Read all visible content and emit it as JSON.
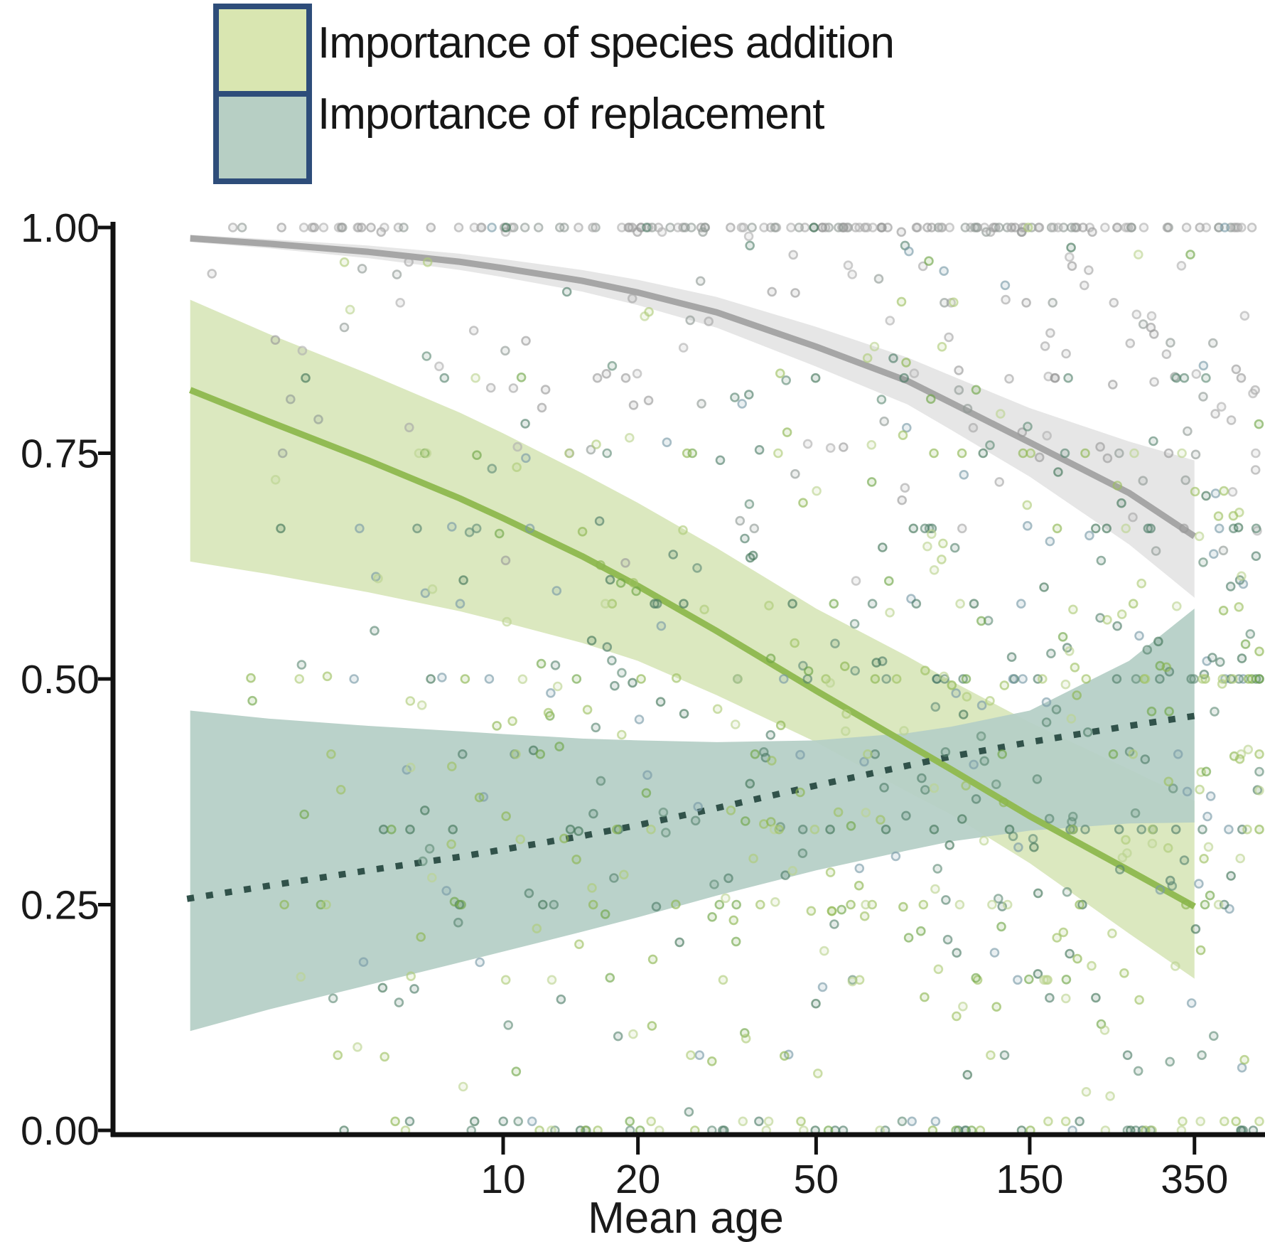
{
  "legend": {
    "border_color": "#2e4d7a",
    "items": [
      {
        "label": "Importance of species addition",
        "color": "#d9e6b1"
      },
      {
        "label": "Importance of replacement",
        "color": "#b7cfc4"
      }
    ]
  },
  "axes": {
    "x_label": "Mean age",
    "y_ticks": [
      {
        "label": "1.00",
        "value": 1
      },
      {
        "label": "0.75",
        "value": 0.75
      },
      {
        "label": "0.50",
        "value": 0.5
      },
      {
        "label": "0.25",
        "value": 0.25
      },
      {
        "label": "0.00",
        "value": 0
      }
    ],
    "x_ticks": [
      {
        "label": "10",
        "value": 10
      },
      {
        "label": "20",
        "value": 20
      },
      {
        "label": "50",
        "value": 50
      },
      {
        "label": "150",
        "value": 150
      },
      {
        "label": "350",
        "value": 350
      }
    ]
  },
  "chart_data": {
    "type": "scatter",
    "title": "",
    "xlabel": "Mean age",
    "ylabel": "",
    "x_scale": "log10",
    "xlim": [
      1.35,
      500
    ],
    "ylim": [
      0,
      1
    ],
    "x_axis_ticks": [
      10,
      20,
      50,
      150,
      350
    ],
    "y_axis_ticks": [
      1.0,
      0.75,
      0.5,
      0.25,
      0.0
    ],
    "grid": false,
    "legend_position": "top-left",
    "series": [
      {
        "name": "overall-grey-trend",
        "legend_label": "",
        "line_color": "#a6a6a6",
        "band_color": "#e3e3e3",
        "band_opacity": 0.9,
        "line_style": "solid",
        "ages": [
          2,
          3,
          5,
          8,
          10,
          15,
          20,
          30,
          50,
          80,
          100,
          150,
          250,
          350
        ],
        "values": [
          0.988,
          0.982,
          0.973,
          0.962,
          0.955,
          0.941,
          0.928,
          0.906,
          0.868,
          0.83,
          0.806,
          0.762,
          0.706,
          0.658
        ],
        "band_upper": [
          0.992,
          0.987,
          0.98,
          0.971,
          0.965,
          0.953,
          0.942,
          0.923,
          0.89,
          0.856,
          0.836,
          0.8,
          0.763,
          0.742
        ],
        "band_lower": [
          0.984,
          0.977,
          0.966,
          0.953,
          0.945,
          0.929,
          0.914,
          0.889,
          0.846,
          0.804,
          0.776,
          0.724,
          0.649,
          0.59
        ]
      },
      {
        "name": "species-addition-trend",
        "legend_label": "Importance of species addition",
        "line_color": "#92bb54",
        "band_color": "#dbe8bf",
        "band_opacity": 1,
        "line_style": "solid",
        "ages": [
          2,
          3,
          5,
          8,
          10,
          15,
          20,
          30,
          50,
          80,
          100,
          150,
          250,
          350
        ],
        "values": [
          0.82,
          0.785,
          0.742,
          0.7,
          0.678,
          0.636,
          0.603,
          0.553,
          0.487,
          0.428,
          0.4,
          0.348,
          0.288,
          0.248
        ],
        "band_upper": [
          0.92,
          0.882,
          0.838,
          0.795,
          0.772,
          0.728,
          0.695,
          0.645,
          0.578,
          0.525,
          0.498,
          0.452,
          0.4,
          0.365
        ],
        "band_lower": [
          0.63,
          0.616,
          0.596,
          0.575,
          0.563,
          0.54,
          0.52,
          0.482,
          0.43,
          0.375,
          0.35,
          0.296,
          0.218,
          0.168
        ]
      },
      {
        "name": "replacement-trend",
        "legend_label": "Importance of replacement",
        "line_color": "#31524a",
        "band_color": "#b5cfc6",
        "band_opacity": 0.93,
        "line_style": "dotted",
        "ages": [
          2,
          3,
          5,
          8,
          10,
          15,
          20,
          30,
          50,
          80,
          100,
          150,
          250,
          350
        ],
        "values": [
          0.257,
          0.271,
          0.288,
          0.303,
          0.311,
          0.326,
          0.338,
          0.357,
          0.382,
          0.404,
          0.414,
          0.43,
          0.448,
          0.459
        ],
        "band_upper": [
          0.465,
          0.456,
          0.448,
          0.442,
          0.439,
          0.434,
          0.432,
          0.43,
          0.432,
          0.44,
          0.447,
          0.465,
          0.52,
          0.578
        ],
        "band_lower": [
          0.11,
          0.134,
          0.161,
          0.186,
          0.198,
          0.22,
          0.236,
          0.26,
          0.288,
          0.31,
          0.32,
          0.332,
          0.34,
          0.341
        ]
      }
    ],
    "scatter": {
      "description": "jittered observation points, proportion (0-1) vs mean age, many pinned at exactly 0 and 1 and at simple fractions",
      "seed": 42,
      "point_radius": 5.5,
      "stroke_width": 2.6,
      "stroke_opacity": 0.62,
      "fill_opacity": 0.16,
      "groups": [
        {
          "name": "grey-points",
          "strokes": [
            "#9a9a9a",
            "#a6a6a6",
            "#8f9a94",
            "#b0b0b0"
          ],
          "count": 270,
          "age_log_range": [
            0.23,
            2.69
          ],
          "age_skew": 0.65,
          "exact": [
            {
              "value": 1.0,
              "share": 0.5
            }
          ],
          "normal": {
            "mean": 0.84,
            "sd": 0.1
          },
          "clip": [
            0.45,
            0.995
          ],
          "snap_share": 0.15
        },
        {
          "name": "replacement-points",
          "strokes": [
            "#618c77",
            "#4e7d68",
            "#7899a6",
            "#57856f",
            "#3f7355"
          ],
          "count": 350,
          "age_log_range": [
            0.4,
            2.7
          ],
          "age_skew": 0.62,
          "exact": [
            {
              "value": 0,
              "share": 0.06
            },
            {
              "value": 0.5,
              "share": 0.04
            },
            {
              "value": 0.3333,
              "share": 0.025
            },
            {
              "value": 0.6667,
              "share": 0.02
            },
            {
              "value": 1.0,
              "share": 0.01
            }
          ],
          "normal": {
            "mean": 0.45,
            "sd": 0.24
          },
          "clip": [
            0.01,
            0.98
          ],
          "snap_share": 0.25
        },
        {
          "name": "addition-points",
          "strokes": [
            "#9dc060",
            "#aecb77",
            "#8bb54e",
            "#bcd490",
            "#6da545"
          ],
          "count": 350,
          "age_log_range": [
            0.4,
            2.7
          ],
          "age_skew": 0.62,
          "exact": [
            {
              "value": 0,
              "share": 0.05
            },
            {
              "value": 0.5,
              "share": 0.03
            },
            {
              "value": 0.25,
              "share": 0.02
            },
            {
              "value": 0.75,
              "share": 0.015
            },
            {
              "value": 1.0,
              "share": 0.005
            }
          ],
          "normal": {
            "mean": 0.4,
            "sd": 0.25
          },
          "clip": [
            0.01,
            0.97
          ],
          "snap_share": 0.25
        }
      ]
    }
  }
}
